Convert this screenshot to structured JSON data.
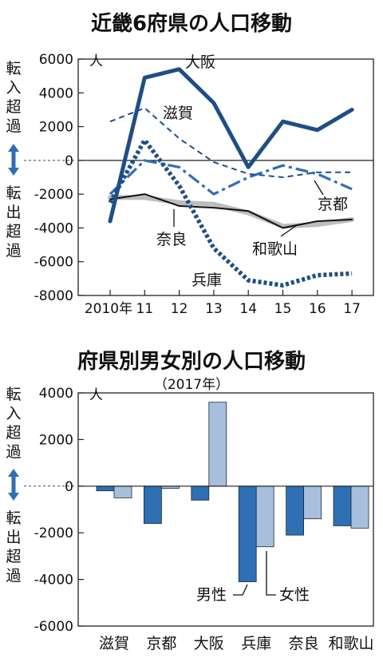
{
  "colors": {
    "dark": "#1f4e86",
    "mid": "#2f6fb3",
    "light": "#a7bfdc",
    "grey": "#bdbdbd",
    "black": "#111111"
  },
  "labels": {
    "unit": "人",
    "inflow": [
      "転",
      "入",
      "超",
      "過"
    ],
    "outflow": [
      "転",
      "出",
      "超",
      "過"
    ]
  },
  "chart_data": [
    {
      "type": "line",
      "title": "近畿6府県の人口移動",
      "x": [
        "2010年",
        "11",
        "12",
        "13",
        "14",
        "15",
        "16",
        "17"
      ],
      "ylim": [
        -8000,
        6000
      ],
      "yticks": [
        "6000",
        "4000",
        "2000",
        "0",
        "-2000",
        "-4000",
        "-6000",
        "-8000"
      ],
      "series": [
        {
          "name": "大阪",
          "style": "solid-thick",
          "color": "#1f4e86",
          "values": [
            -3600,
            4900,
            5400,
            3400,
            -400,
            2300,
            1800,
            3000
          ]
        },
        {
          "name": "滋賀",
          "style": "dashed",
          "color": "#1f4e86",
          "values": [
            2300,
            3100,
            1300,
            -100,
            -800,
            -1000,
            -700,
            -700
          ]
        },
        {
          "name": "京都",
          "style": "dash-dot",
          "color": "#2f6fb3",
          "values": [
            -2000,
            0,
            -400,
            -2000,
            -1000,
            -300,
            -800,
            -1700
          ]
        },
        {
          "name": "兵庫",
          "style": "dotted-thick",
          "color": "#1f4e86",
          "values": [
            -2500,
            1200,
            -1500,
            -5200,
            -7100,
            -7400,
            -6800,
            -6700
          ]
        },
        {
          "name": "奈良",
          "style": "solid-thin",
          "color": "#111111",
          "values": [
            -2300,
            -2000,
            -2700,
            -2800,
            -3000,
            -4000,
            -3600,
            -3500
          ]
        },
        {
          "name": "和歌山",
          "style": "solid-grey",
          "color": "#bdbdbd",
          "values": [
            -2200,
            -2200,
            -2500,
            -2600,
            -3100,
            -3900,
            -3800,
            -3500
          ]
        }
      ]
    },
    {
      "type": "bar",
      "title": "府県別男女別の人口移動",
      "subtitle": "（2017年）",
      "categories": [
        "滋賀",
        "京都",
        "大阪",
        "兵庫",
        "奈良",
        "和歌山"
      ],
      "ylim": [
        -6000,
        4000
      ],
      "yticks": [
        "4000",
        "2000",
        "0",
        "-2000",
        "-4000",
        "-6000"
      ],
      "series": [
        {
          "name": "男性",
          "color": "#2f6fb3",
          "values": [
            -200,
            -1600,
            -600,
            -4100,
            -2100,
            -1700
          ]
        },
        {
          "name": "女性",
          "color": "#a7bfdc",
          "values": [
            -500,
            -100,
            3600,
            -2600,
            -1400,
            -1800
          ]
        }
      ]
    }
  ]
}
